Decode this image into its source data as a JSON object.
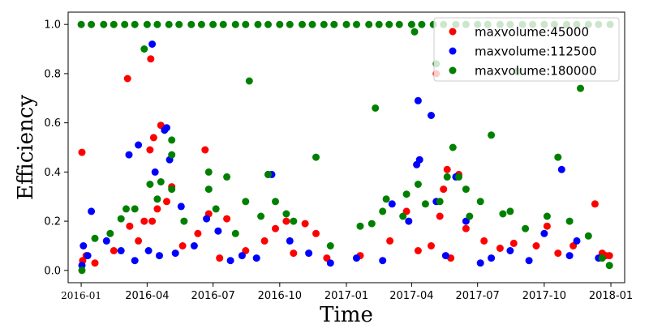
{
  "chart_data": {
    "type": "scatter",
    "title": "",
    "xlabel": "Time",
    "ylabel": "Efficiency",
    "xlim": [
      "2015-12-14",
      "2018-01-20"
    ],
    "ylim": [
      -0.05,
      1.05
    ],
    "x_ticks": [
      {
        "date": "2016-01-01",
        "label": "2016-01"
      },
      {
        "date": "2016-04-01",
        "label": "2016-04"
      },
      {
        "date": "2016-07-01",
        "label": "2016-07"
      },
      {
        "date": "2016-10-01",
        "label": "2016-10"
      },
      {
        "date": "2017-01-01",
        "label": "2017-01"
      },
      {
        "date": "2017-04-01",
        "label": "2017-04"
      },
      {
        "date": "2017-07-01",
        "label": "2017-07"
      },
      {
        "date": "2017-10-01",
        "label": "2017-10"
      },
      {
        "date": "2018-01-01",
        "label": "2018-01"
      }
    ],
    "y_ticks": [
      {
        "value": 0.0,
        "label": "0.0"
      },
      {
        "value": 0.2,
        "label": "0.2"
      },
      {
        "value": 0.4,
        "label": "0.4"
      },
      {
        "value": 0.6,
        "label": "0.6"
      },
      {
        "value": 0.8,
        "label": "0.8"
      },
      {
        "value": 1.0,
        "label": "1.0"
      }
    ],
    "grid": false,
    "legend_position": "top-right",
    "series": [
      {
        "name": "maxvolume:45000",
        "color": "#ff0000",
        "points": [
          {
            "x": "2016-01-02",
            "y": 0.48
          },
          {
            "x": "2016-01-03",
            "y": 0.04
          },
          {
            "x": "2016-01-08",
            "y": 0.06
          },
          {
            "x": "2016-01-20",
            "y": 0.03
          },
          {
            "x": "2016-02-15",
            "y": 0.08
          },
          {
            "x": "2016-03-05",
            "y": 0.78
          },
          {
            "x": "2016-03-08",
            "y": 0.18
          },
          {
            "x": "2016-03-20",
            "y": 0.12
          },
          {
            "x": "2016-03-28",
            "y": 0.2
          },
          {
            "x": "2016-04-05",
            "y": 0.49
          },
          {
            "x": "2016-04-06",
            "y": 0.86
          },
          {
            "x": "2016-04-08",
            "y": 0.2
          },
          {
            "x": "2016-04-10",
            "y": 0.54
          },
          {
            "x": "2016-04-15",
            "y": 0.25
          },
          {
            "x": "2016-04-20",
            "y": 0.59
          },
          {
            "x": "2016-04-28",
            "y": 0.28
          },
          {
            "x": "2016-05-05",
            "y": 0.34
          },
          {
            "x": "2016-05-20",
            "y": 0.1
          },
          {
            "x": "2016-06-10",
            "y": 0.15
          },
          {
            "x": "2016-06-20",
            "y": 0.49
          },
          {
            "x": "2016-06-25",
            "y": 0.23
          },
          {
            "x": "2016-07-10",
            "y": 0.05
          },
          {
            "x": "2016-07-20",
            "y": 0.21
          },
          {
            "x": "2016-08-15",
            "y": 0.08
          },
          {
            "x": "2016-09-10",
            "y": 0.12
          },
          {
            "x": "2016-09-25",
            "y": 0.17
          },
          {
            "x": "2016-10-10",
            "y": 0.2
          },
          {
            "x": "2016-10-20",
            "y": 0.07
          },
          {
            "x": "2016-11-05",
            "y": 0.19
          },
          {
            "x": "2016-11-20",
            "y": 0.15
          },
          {
            "x": "2016-12-05",
            "y": 0.05
          },
          {
            "x": "2017-01-20",
            "y": 0.06
          },
          {
            "x": "2017-03-02",
            "y": 0.12
          },
          {
            "x": "2017-03-25",
            "y": 0.24
          },
          {
            "x": "2017-04-10",
            "y": 0.08
          },
          {
            "x": "2017-04-28",
            "y": 0.1
          },
          {
            "x": "2017-05-05",
            "y": 0.8
          },
          {
            "x": "2017-05-10",
            "y": 0.22
          },
          {
            "x": "2017-05-15",
            "y": 0.33
          },
          {
            "x": "2017-05-20",
            "y": 0.41
          },
          {
            "x": "2017-05-25",
            "y": 0.05
          },
          {
            "x": "2017-06-05",
            "y": 0.39
          },
          {
            "x": "2017-06-15",
            "y": 0.17
          },
          {
            "x": "2017-07-10",
            "y": 0.12
          },
          {
            "x": "2017-08-01",
            "y": 0.09
          },
          {
            "x": "2017-08-20",
            "y": 0.11
          },
          {
            "x": "2017-09-20",
            "y": 0.1
          },
          {
            "x": "2017-10-05",
            "y": 0.18
          },
          {
            "x": "2017-10-20",
            "y": 0.07
          },
          {
            "x": "2017-11-10",
            "y": 0.1
          },
          {
            "x": "2017-12-10",
            "y": 0.27
          },
          {
            "x": "2017-12-20",
            "y": 0.07
          },
          {
            "x": "2017-12-25",
            "y": 0.06
          },
          {
            "x": "2017-12-30",
            "y": 0.06
          }
        ]
      },
      {
        "name": "maxvolume:112500",
        "color": "#0000ff",
        "points": [
          {
            "x": "2016-01-02",
            "y": 0.02
          },
          {
            "x": "2016-01-04",
            "y": 0.1
          },
          {
            "x": "2016-01-10",
            "y": 0.06
          },
          {
            "x": "2016-01-15",
            "y": 0.24
          },
          {
            "x": "2016-02-05",
            "y": 0.12
          },
          {
            "x": "2016-02-25",
            "y": 0.08
          },
          {
            "x": "2016-03-07",
            "y": 0.47
          },
          {
            "x": "2016-03-15",
            "y": 0.04
          },
          {
            "x": "2016-03-20",
            "y": 0.51
          },
          {
            "x": "2016-04-03",
            "y": 0.08
          },
          {
            "x": "2016-04-08",
            "y": 0.92
          },
          {
            "x": "2016-04-12",
            "y": 0.4
          },
          {
            "x": "2016-04-18",
            "y": 0.06
          },
          {
            "x": "2016-04-25",
            "y": 0.57
          },
          {
            "x": "2016-04-28",
            "y": 0.58
          },
          {
            "x": "2016-05-02",
            "y": 0.45
          },
          {
            "x": "2016-05-10",
            "y": 0.07
          },
          {
            "x": "2016-05-18",
            "y": 0.26
          },
          {
            "x": "2016-06-05",
            "y": 0.1
          },
          {
            "x": "2016-06-22",
            "y": 0.21
          },
          {
            "x": "2016-07-08",
            "y": 0.16
          },
          {
            "x": "2016-07-25",
            "y": 0.04
          },
          {
            "x": "2016-08-10",
            "y": 0.06
          },
          {
            "x": "2016-08-30",
            "y": 0.05
          },
          {
            "x": "2016-09-15",
            "y": 0.39
          },
          {
            "x": "2016-09-20",
            "y": 0.39
          },
          {
            "x": "2016-10-15",
            "y": 0.12
          },
          {
            "x": "2016-11-10",
            "y": 0.07
          },
          {
            "x": "2016-12-10",
            "y": 0.03
          },
          {
            "x": "2017-01-15",
            "y": 0.05
          },
          {
            "x": "2017-02-20",
            "y": 0.04
          },
          {
            "x": "2017-03-05",
            "y": 0.27
          },
          {
            "x": "2017-03-28",
            "y": 0.2
          },
          {
            "x": "2017-04-08",
            "y": 0.43
          },
          {
            "x": "2017-04-10",
            "y": 0.69
          },
          {
            "x": "2017-04-12",
            "y": 0.45
          },
          {
            "x": "2017-04-28",
            "y": 0.63
          },
          {
            "x": "2017-05-05",
            "y": 0.28
          },
          {
            "x": "2017-05-18",
            "y": 0.06
          },
          {
            "x": "2017-06-01",
            "y": 0.38
          },
          {
            "x": "2017-06-15",
            "y": 0.2
          },
          {
            "x": "2017-07-05",
            "y": 0.03
          },
          {
            "x": "2017-07-20",
            "y": 0.05
          },
          {
            "x": "2017-08-15",
            "y": 0.08
          },
          {
            "x": "2017-09-10",
            "y": 0.04
          },
          {
            "x": "2017-10-01",
            "y": 0.15
          },
          {
            "x": "2017-10-25",
            "y": 0.41
          },
          {
            "x": "2017-11-05",
            "y": 0.06
          },
          {
            "x": "2017-11-15",
            "y": 0.12
          },
          {
            "x": "2017-12-15",
            "y": 0.05
          }
        ]
      },
      {
        "name": "maxvolume:180000",
        "color": "#008000",
        "points": [
          {
            "x": "2016-01-02",
            "y": 0.0
          },
          {
            "x": "2016-01-20",
            "y": 0.13
          },
          {
            "x": "2016-02-10",
            "y": 0.15
          },
          {
            "x": "2016-02-25",
            "y": 0.21
          },
          {
            "x": "2016-03-03",
            "y": 0.25
          },
          {
            "x": "2016-03-15",
            "y": 0.25
          },
          {
            "x": "2016-03-28",
            "y": 0.9
          },
          {
            "x": "2016-04-05",
            "y": 0.35
          },
          {
            "x": "2016-04-15",
            "y": 0.29
          },
          {
            "x": "2016-04-20",
            "y": 0.36
          },
          {
            "x": "2016-05-05",
            "y": 0.47
          },
          {
            "x": "2016-05-05",
            "y": 0.53
          },
          {
            "x": "2016-05-05",
            "y": 0.33
          },
          {
            "x": "2016-05-22",
            "y": 0.2
          },
          {
            "x": "2016-06-25",
            "y": 0.4
          },
          {
            "x": "2016-06-25",
            "y": 0.33
          },
          {
            "x": "2016-07-05",
            "y": 0.25
          },
          {
            "x": "2016-07-20",
            "y": 0.38
          },
          {
            "x": "2016-08-01",
            "y": 0.15
          },
          {
            "x": "2016-08-20",
            "y": 0.77
          },
          {
            "x": "2016-08-15",
            "y": 0.28
          },
          {
            "x": "2016-09-05",
            "y": 0.22
          },
          {
            "x": "2016-09-15",
            "y": 0.39
          },
          {
            "x": "2016-09-25",
            "y": 0.28
          },
          {
            "x": "2016-10-10",
            "y": 0.23
          },
          {
            "x": "2016-10-20",
            "y": 0.2
          },
          {
            "x": "2016-11-20",
            "y": 0.46
          },
          {
            "x": "2016-12-10",
            "y": 0.1
          },
          {
            "x": "2017-01-20",
            "y": 0.18
          },
          {
            "x": "2017-02-05",
            "y": 0.19
          },
          {
            "x": "2017-02-10",
            "y": 0.66
          },
          {
            "x": "2017-02-20",
            "y": 0.24
          },
          {
            "x": "2017-02-25",
            "y": 0.29
          },
          {
            "x": "2017-03-20",
            "y": 0.22
          },
          {
            "x": "2017-03-25",
            "y": 0.31
          },
          {
            "x": "2017-04-05",
            "y": 0.97
          },
          {
            "x": "2017-04-10",
            "y": 0.35
          },
          {
            "x": "2017-04-20",
            "y": 0.27
          },
          {
            "x": "2017-05-05",
            "y": 0.84
          },
          {
            "x": "2017-05-10",
            "y": 0.28
          },
          {
            "x": "2017-05-20",
            "y": 0.38
          },
          {
            "x": "2017-05-28",
            "y": 0.5
          },
          {
            "x": "2017-06-05",
            "y": 0.38
          },
          {
            "x": "2017-06-15",
            "y": 0.33
          },
          {
            "x": "2017-06-20",
            "y": 0.22
          },
          {
            "x": "2017-07-05",
            "y": 0.28
          },
          {
            "x": "2017-07-20",
            "y": 0.55
          },
          {
            "x": "2017-08-05",
            "y": 0.23
          },
          {
            "x": "2017-08-15",
            "y": 0.24
          },
          {
            "x": "2017-08-25",
            "y": 0.81
          },
          {
            "x": "2017-09-05",
            "y": 0.17
          },
          {
            "x": "2017-10-05",
            "y": 0.22
          },
          {
            "x": "2017-10-20",
            "y": 0.46
          },
          {
            "x": "2017-11-05",
            "y": 0.2
          },
          {
            "x": "2017-11-20",
            "y": 0.74
          },
          {
            "x": "2017-12-01",
            "y": 0.14
          },
          {
            "x": "2017-12-20",
            "y": 0.05
          },
          {
            "x": "2017-12-30",
            "y": 0.02
          },
          {
            "x": "2016-01-01",
            "y": 1.0
          },
          {
            "x": "2016-01-15",
            "y": 1.0
          },
          {
            "x": "2016-02-01",
            "y": 1.0
          },
          {
            "x": "2016-02-15",
            "y": 1.0
          },
          {
            "x": "2016-03-01",
            "y": 1.0
          },
          {
            "x": "2016-03-15",
            "y": 1.0
          },
          {
            "x": "2016-04-01",
            "y": 1.0
          },
          {
            "x": "2016-04-15",
            "y": 1.0
          },
          {
            "x": "2016-05-01",
            "y": 1.0
          },
          {
            "x": "2016-05-15",
            "y": 1.0
          },
          {
            "x": "2016-06-01",
            "y": 1.0
          },
          {
            "x": "2016-06-15",
            "y": 1.0
          },
          {
            "x": "2016-07-01",
            "y": 1.0
          },
          {
            "x": "2016-07-15",
            "y": 1.0
          },
          {
            "x": "2016-08-01",
            "y": 1.0
          },
          {
            "x": "2016-08-15",
            "y": 1.0
          },
          {
            "x": "2016-09-01",
            "y": 1.0
          },
          {
            "x": "2016-09-15",
            "y": 1.0
          },
          {
            "x": "2016-10-01",
            "y": 1.0
          },
          {
            "x": "2016-10-15",
            "y": 1.0
          },
          {
            "x": "2016-11-01",
            "y": 1.0
          },
          {
            "x": "2016-11-15",
            "y": 1.0
          },
          {
            "x": "2016-12-01",
            "y": 1.0
          },
          {
            "x": "2016-12-15",
            "y": 1.0
          },
          {
            "x": "2017-01-01",
            "y": 1.0
          },
          {
            "x": "2017-01-15",
            "y": 1.0
          },
          {
            "x": "2017-02-01",
            "y": 1.0
          },
          {
            "x": "2017-02-15",
            "y": 1.0
          },
          {
            "x": "2017-03-01",
            "y": 1.0
          },
          {
            "x": "2017-03-15",
            "y": 1.0
          },
          {
            "x": "2017-04-01",
            "y": 1.0
          },
          {
            "x": "2017-04-15",
            "y": 1.0
          },
          {
            "x": "2017-05-01",
            "y": 1.0
          },
          {
            "x": "2017-05-15",
            "y": 1.0
          },
          {
            "x": "2017-06-01",
            "y": 1.0
          },
          {
            "x": "2017-06-15",
            "y": 1.0
          },
          {
            "x": "2017-07-01",
            "y": 1.0
          },
          {
            "x": "2017-07-15",
            "y": 1.0
          },
          {
            "x": "2017-08-01",
            "y": 1.0
          },
          {
            "x": "2017-08-15",
            "y": 1.0
          },
          {
            "x": "2017-09-01",
            "y": 1.0
          },
          {
            "x": "2017-09-15",
            "y": 1.0
          },
          {
            "x": "2017-10-01",
            "y": 1.0
          },
          {
            "x": "2017-10-15",
            "y": 1.0
          },
          {
            "x": "2017-11-01",
            "y": 1.0
          },
          {
            "x": "2017-11-15",
            "y": 1.0
          },
          {
            "x": "2017-12-01",
            "y": 1.0
          },
          {
            "x": "2017-12-15",
            "y": 1.0
          },
          {
            "x": "2017-12-31",
            "y": 1.0
          }
        ]
      }
    ]
  }
}
